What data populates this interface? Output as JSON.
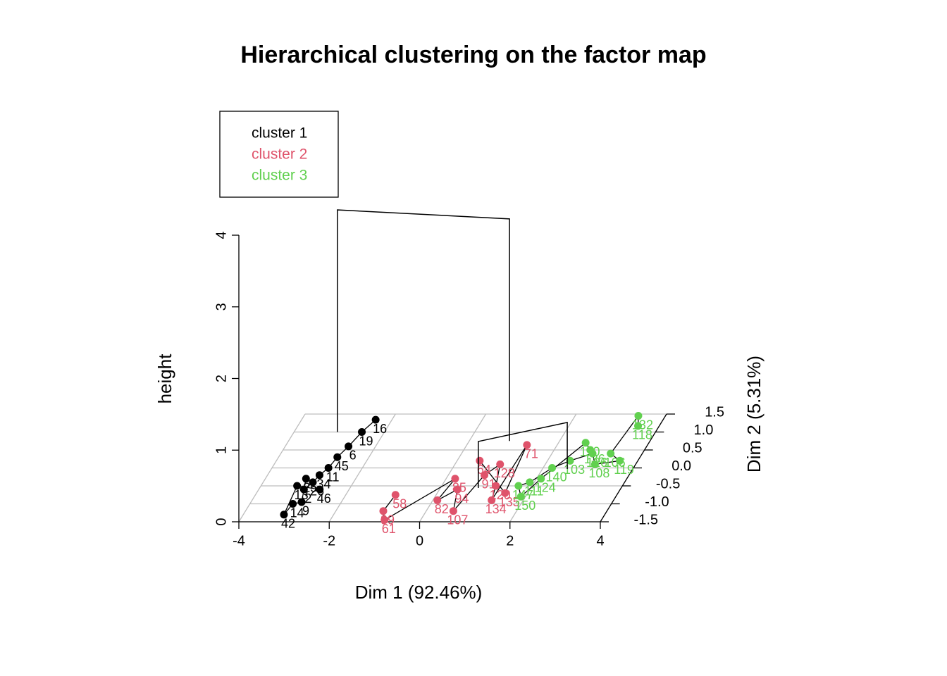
{
  "chart_data": {
    "type": "scatter3d",
    "title": "Hierarchical clustering on the factor map",
    "xlabel": "Dim 1 (92.46%)",
    "ylabel": "Dim 2 (5.31%)",
    "zlabel": "height",
    "xlim": [
      -4,
      4
    ],
    "xticks": [
      -4,
      -2,
      0,
      2,
      4
    ],
    "ylim": [
      -1.5,
      1.5
    ],
    "yticks": [
      -1.5,
      {
        "value": -1,
        "label": "-1.0"
      },
      -0.5,
      {
        "value": 0,
        "label": "0.0"
      },
      0.5,
      {
        "value": 1,
        "label": "1.0"
      },
      1.5
    ],
    "zlim": [
      0,
      4
    ],
    "zticks": [
      0,
      1,
      2,
      3,
      4
    ],
    "grid": true,
    "legend": "top-left",
    "series": [
      {
        "name": "cluster 1",
        "color": "#000000",
        "x": [
          -2.36,
          -2.5,
          -2.6,
          -2.7,
          -2.75,
          -2.85,
          -2.9,
          -3.0,
          -3.1,
          -2.88,
          -3.05,
          -3.1,
          -3.2,
          -2.65
        ],
        "y": [
          1.34,
          1.0,
          0.6,
          0.3,
          0.0,
          -0.2,
          -0.4,
          -0.6,
          -0.3,
          -0.95,
          -1.0,
          -1.3,
          -0.5,
          -0.6
        ],
        "labels": [
          "16",
          "19",
          "6",
          "45",
          "11",
          "34",
          "26",
          "2",
          "25",
          "9",
          "14",
          "42",
          "13",
          "46"
        ]
      },
      {
        "name": "cluster 2",
        "color": "#DF536B",
        "x": [
          -0.9,
          -0.95,
          -0.8,
          0.2,
          0.1,
          0.4,
          0.6,
          0.8,
          1.0,
          1.2,
          1.3,
          1.33,
          1.5,
          0.5
        ],
        "y": [
          -0.75,
          -1.2,
          -1.45,
          -0.3,
          -0.9,
          -0.6,
          -1.2,
          -0.2,
          0.1,
          -0.5,
          -0.9,
          0.64,
          -0.7,
          0.2
        ],
        "labels": [
          "58",
          "99",
          "61",
          "85",
          "82",
          "94",
          "107",
          "91",
          "128",
          "120",
          "134",
          "71",
          "135",
          "64"
        ]
      },
      {
        "name": "cluster 3",
        "color": "#61D04F",
        "x": [
          3.53,
          3.4,
          3.3,
          3.6,
          3.1,
          2.9,
          2.5,
          2.2,
          1.9,
          1.7,
          1.9,
          2.1,
          2.6,
          2.8
        ],
        "y": [
          1.17,
          1.45,
          0.4,
          0.2,
          0.1,
          0.4,
          0.2,
          0.0,
          -0.4,
          -0.5,
          -0.8,
          -0.3,
          0.7,
          0.5
        ],
        "labels": [
          "118",
          "132",
          "106",
          "119",
          "108",
          "126",
          "103",
          "140",
          "111",
          "147",
          "150",
          "124",
          "110",
          "136"
        ]
      }
    ],
    "merges": [
      {
        "x": [
          -3.04,
          0.89
        ],
        "y": [
          1.0,
          0.75
        ],
        "height": 3.1
      },
      {
        "x": [
          0.84,
          2.55
        ],
        "y": [
          -0.56,
          -0.03
        ],
        "height": 0.65
      }
    ]
  }
}
